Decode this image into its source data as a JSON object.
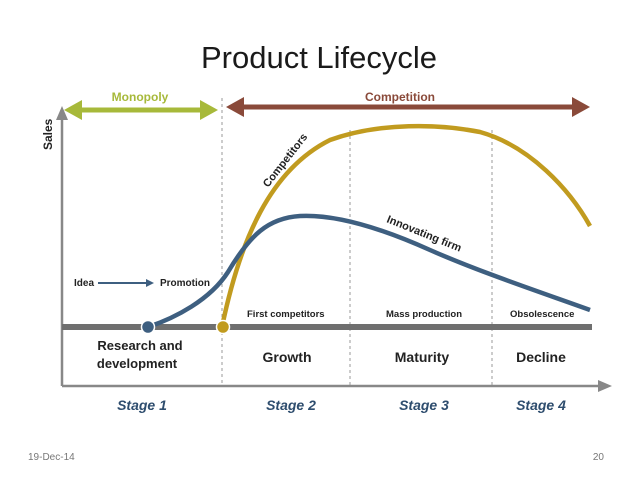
{
  "slide": {
    "title": "Product Lifecycle",
    "date": "19-Dec-14",
    "page_number": "20"
  },
  "diagram": {
    "axis_label": "Sales",
    "monopoly_label": "Monopoly",
    "competition_label": "Competition",
    "idea_label": "Idea",
    "promotion_label": "Promotion",
    "competitors_label": "Competitors",
    "innovating_firm_label": "Innovating firm",
    "first_competitors_label": "First competitors",
    "mass_production_label": "Mass production",
    "obsolescence_label": "Obsolescence",
    "phases": {
      "research_line1": "Research and",
      "research_line2": "development",
      "growth": "Growth",
      "maturity": "Maturity",
      "decline": "Decline"
    },
    "stages": [
      "Stage 1",
      "Stage 2",
      "Stage 3",
      "Stage 4"
    ],
    "colors": {
      "monopoly": "#a7b93a",
      "competition": "#8a4a3a",
      "competitors_curve": "#c19b1f",
      "innovating_curve": "#3e5f80",
      "baseline": "#6f6f6f",
      "stage_text": "#2e4d6e"
    }
  }
}
